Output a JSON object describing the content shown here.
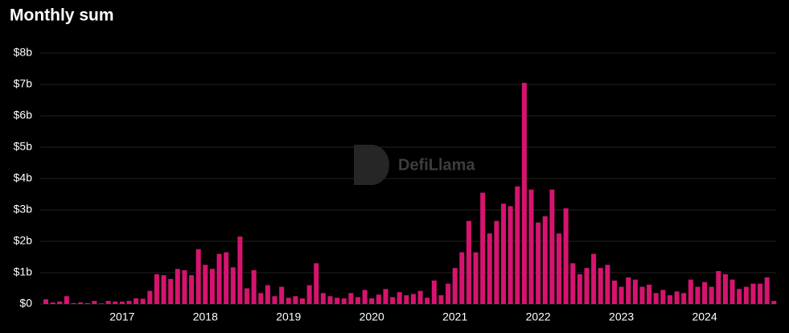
{
  "chart_data": {
    "type": "bar",
    "title": "Monthly sum",
    "watermark": "DefiLlama",
    "color": "#d6146f",
    "grid": true,
    "categories": [
      null,
      null,
      null,
      null,
      null,
      null,
      null,
      null,
      null,
      null,
      null,
      "2017",
      null,
      null,
      null,
      null,
      null,
      null,
      null,
      null,
      null,
      null,
      null,
      "2018",
      null,
      null,
      null,
      null,
      null,
      null,
      null,
      null,
      null,
      null,
      null,
      "2019",
      null,
      null,
      null,
      null,
      null,
      null,
      null,
      null,
      null,
      null,
      null,
      "2020",
      null,
      null,
      null,
      null,
      null,
      null,
      null,
      null,
      null,
      null,
      null,
      "2021",
      null,
      null,
      null,
      null,
      null,
      null,
      null,
      null,
      null,
      null,
      null,
      "2022",
      null,
      null,
      null,
      null,
      null,
      null,
      null,
      null,
      null,
      null,
      null,
      "2023",
      null,
      null,
      null,
      null,
      null,
      null,
      null,
      null,
      null,
      null,
      null,
      "2024",
      null,
      null,
      null,
      null,
      null,
      null,
      null,
      null,
      null,
      null
    ],
    "values": [
      0.15,
      0.05,
      0.08,
      0.25,
      0.03,
      0.05,
      0.03,
      0.1,
      0.02,
      0.1,
      0.08,
      0.08,
      0.1,
      0.18,
      0.17,
      0.42,
      0.95,
      0.92,
      0.8,
      1.12,
      1.08,
      0.92,
      1.75,
      1.25,
      1.12,
      1.6,
      1.65,
      1.17,
      2.15,
      0.5,
      1.08,
      0.35,
      0.6,
      0.25,
      0.55,
      0.2,
      0.25,
      0.18,
      0.6,
      1.3,
      0.35,
      0.25,
      0.2,
      0.18,
      0.35,
      0.22,
      0.45,
      0.18,
      0.3,
      0.48,
      0.22,
      0.38,
      0.28,
      0.32,
      0.42,
      0.2,
      0.75,
      0.28,
      0.65,
      1.15,
      1.65,
      2.65,
      1.65,
      3.55,
      2.25,
      2.65,
      3.2,
      3.12,
      3.75,
      7.05,
      3.65,
      2.6,
      2.8,
      3.65,
      2.25,
      3.05,
      1.3,
      0.95,
      1.15,
      1.6,
      1.15,
      1.25,
      0.75,
      0.55,
      0.85,
      0.78,
      0.55,
      0.62,
      0.35,
      0.45,
      0.28,
      0.4,
      0.35,
      0.78,
      0.55,
      0.7,
      0.55,
      1.05,
      0.95,
      0.78,
      0.48,
      0.55,
      0.65,
      0.65,
      0.85,
      0.1
    ],
    "ylim": [
      0,
      8
    ],
    "yticks": [
      {
        "value": 0,
        "label": "$0"
      },
      {
        "value": 1,
        "label": "$1b"
      },
      {
        "value": 2,
        "label": "$2b"
      },
      {
        "value": 3,
        "label": "$3b"
      },
      {
        "value": 4,
        "label": "$4b"
      },
      {
        "value": 5,
        "label": "$5b"
      },
      {
        "value": 6,
        "label": "$6b"
      },
      {
        "value": 7,
        "label": "$7b"
      },
      {
        "value": 8,
        "label": "$8b"
      }
    ]
  }
}
